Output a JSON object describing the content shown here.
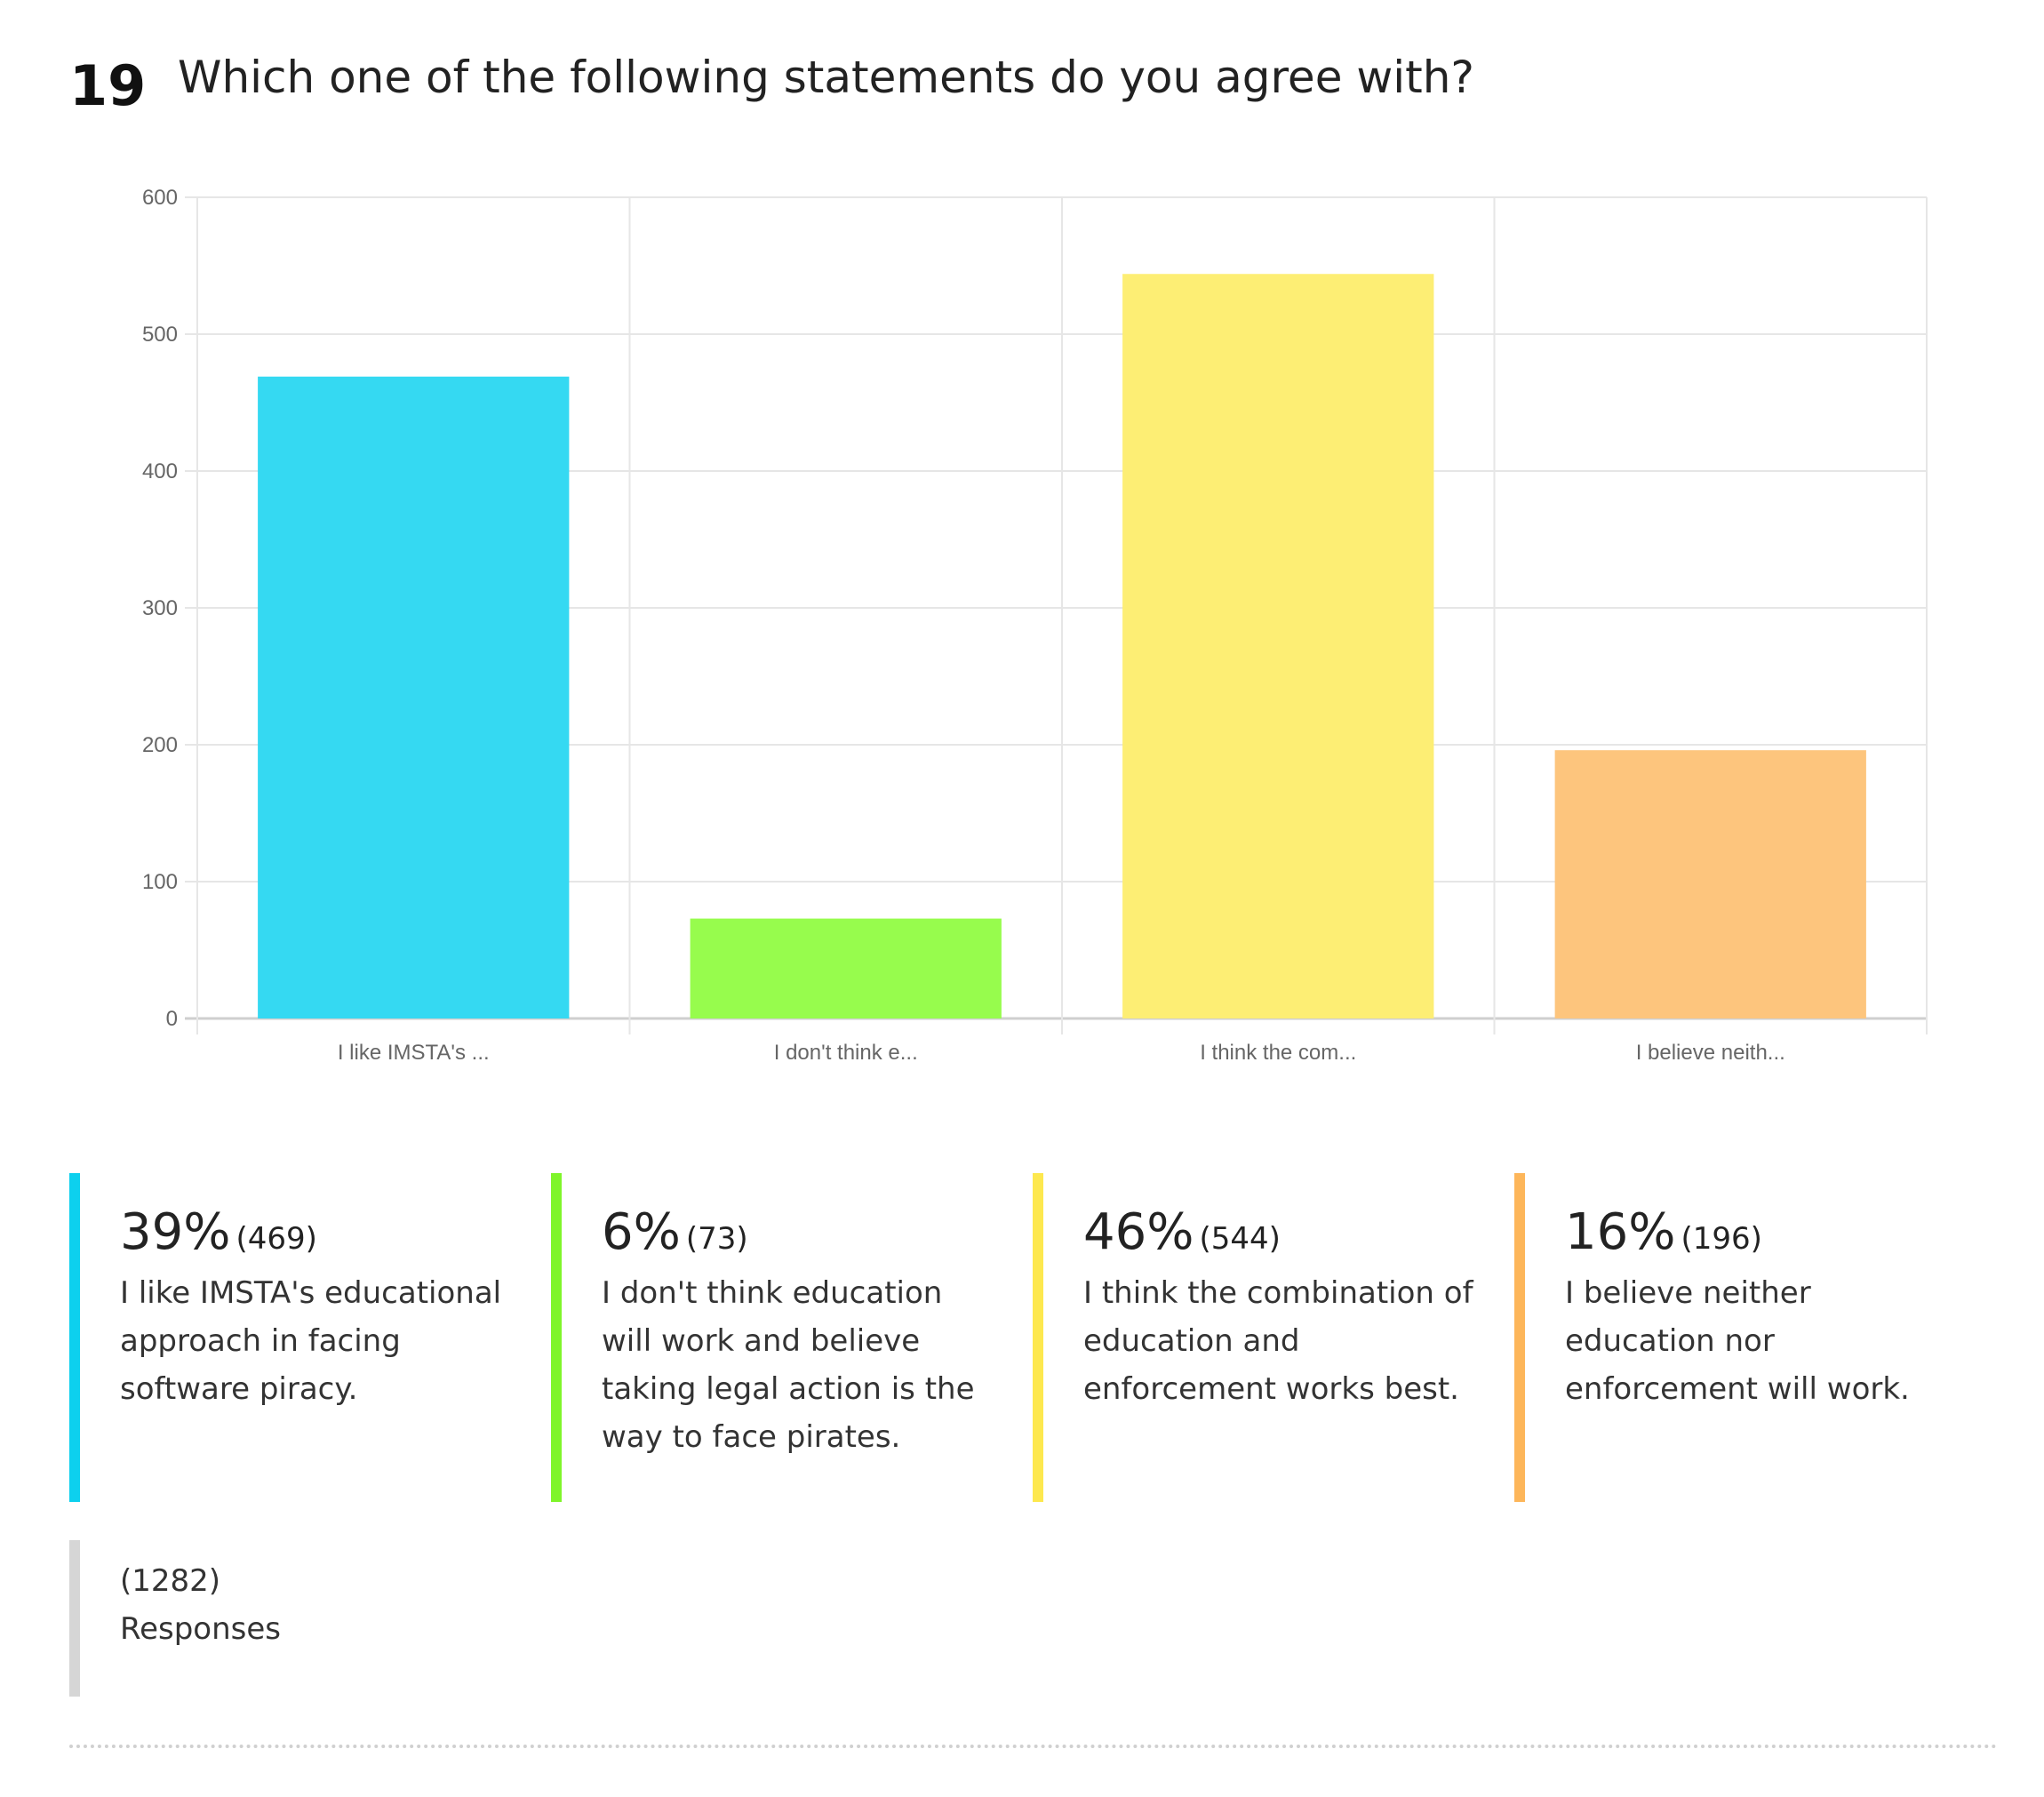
{
  "question": {
    "number": "19",
    "title": "Which one of the following statements do you agree with?"
  },
  "chart_data": {
    "type": "bar",
    "categories": [
      "I like IMSTA's ...",
      "I don't think e...",
      "I think the com...",
      "I believe neith..."
    ],
    "values": [
      469,
      73,
      544,
      196
    ],
    "colors": [
      "#35d9f2",
      "#97fc4d",
      "#fdee74",
      "#fdc57d"
    ],
    "ylim": [
      0,
      600
    ],
    "yticks": [
      0,
      100,
      200,
      300,
      400,
      500,
      600
    ],
    "grid": true,
    "title": "",
    "xlabel": "",
    "ylabel": ""
  },
  "legend": [
    {
      "percent": "39%",
      "count": "(469)",
      "label": "I like IMSTA's educational approach in facing software piracy.",
      "color": "#0dd0ee"
    },
    {
      "percent": "6%",
      "count": "(73)",
      "label": "I don't think education will work and believe taking legal action is the way to face pirates.",
      "color": "#7ff52a"
    },
    {
      "percent": "46%",
      "count": "(544)",
      "label": "I think the combination of education and enforcement works best.",
      "color": "#fde84e"
    },
    {
      "percent": "16%",
      "count": "(196)",
      "label": "I believe neither education nor enforcement will work.",
      "color": "#fdb65a"
    }
  ],
  "total": {
    "count": "(1282)",
    "label": "Responses"
  }
}
